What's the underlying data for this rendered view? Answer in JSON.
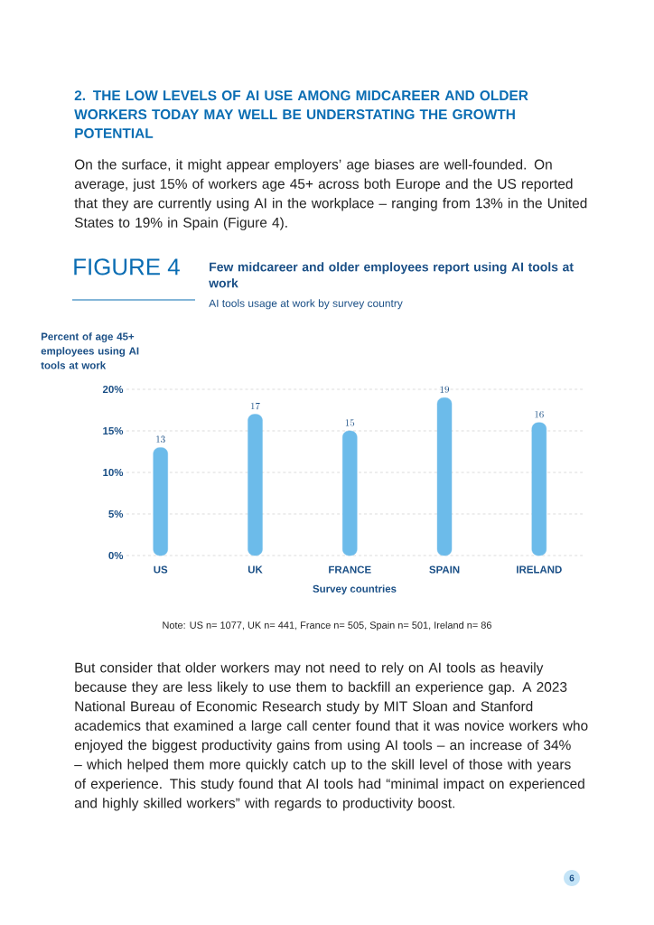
{
  "chart_data": {
    "type": "bar",
    "title": "Few midcareer and older employees report using AI tools at work",
    "subtitle": "AI tools usage at work by survey country",
    "ylabel": "Percent of age 45+ employees using AI tools at work",
    "xlabel": "Survey countries",
    "categories": [
      "US",
      "UK",
      "FRANCE",
      "SPAIN",
      "IRELAND"
    ],
    "values": [
      13,
      17,
      15,
      19,
      16
    ],
    "color": "#6cbbea",
    "ylim": [
      0,
      20
    ],
    "yticks": [
      {
        "value": 0,
        "label": "0%"
      },
      {
        "value": 5,
        "label": "5%"
      },
      {
        "value": 10,
        "label": "10%"
      },
      {
        "value": 15,
        "label": "15%"
      },
      {
        "value": 20,
        "label": "20%"
      }
    ],
    "grid": "y",
    "data_labels": true,
    "annotations": [
      "2. THE LOW LEVELS OF AI USE AMONG MIDCAREER AND OLDER WORKERS TODAY MAY WELL BE UNDERSTATING THE GROWTH POTENTIAL",
      "On the surface, it might appear employers’ age biases are well-founded. On average, just 15% of workers age 45+ across both Europe and the US reported that they are currently using AI in the workplace – ranging from 13% in the United States to 19% in Spain (Figure 4).",
      "FIGURE 4",
      "Note: US n= 1077, UK n= 441, France n= 505, Spain n= 501, Ireland n= 86",
      "But consider that older workers may not need to rely on AI tools as heavily because they are less likely to use them to backfill an experience gap. A 2023 National Bureau of Economic Research study by MIT Sloan and Stanford academics that examined a large call center found that it was novice workers who enjoyed the biggest productivity gains from using AI tools – an increase of 34% – which helped them more quickly catch up to the skill level of those with years of experience. This study found that AI tools had “minimal impact on experienced and highly skilled workers” with regards to productivity boost.",
      "6"
    ]
  }
}
